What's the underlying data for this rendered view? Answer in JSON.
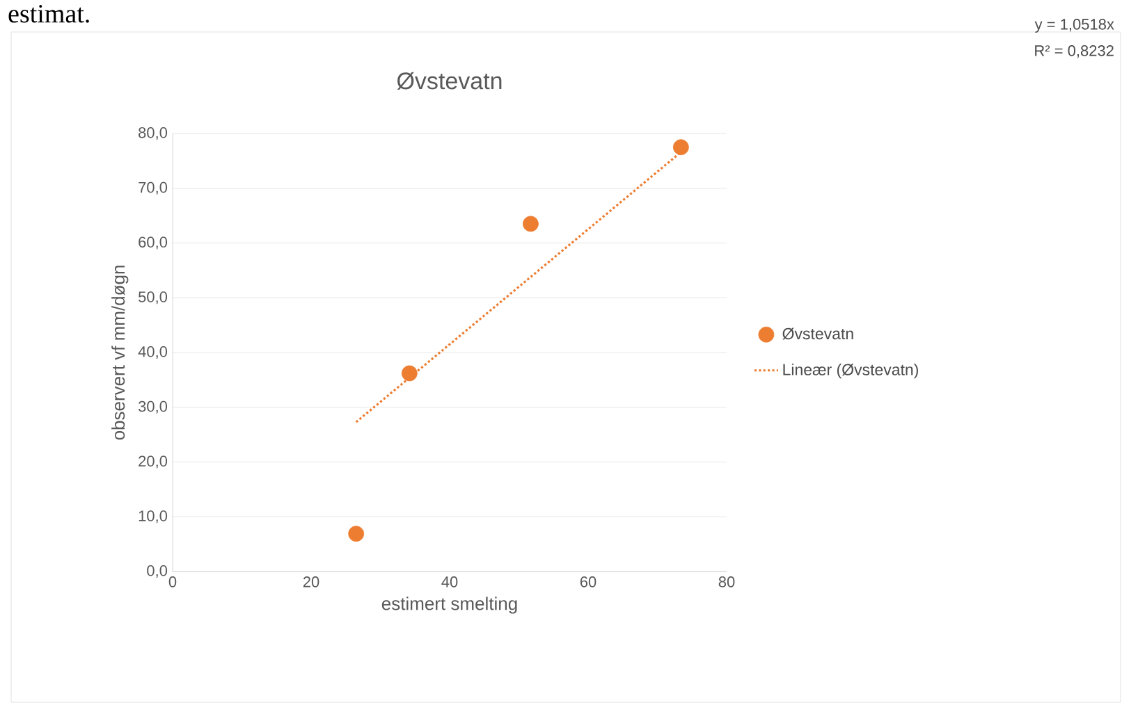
{
  "chart_data": {
    "type": "scatter",
    "title": "Øvstevatn",
    "xlabel": "estimert smelting",
    "ylabel": "observert vf mm/døgn",
    "xlim": [
      0,
      80
    ],
    "xticks": [
      0,
      20,
      40,
      60,
      80
    ],
    "ylim": [
      0,
      80
    ],
    "yticks": [
      {
        "value": 0,
        "label": "0,0"
      },
      {
        "value": 10,
        "label": "10,0"
      },
      {
        "value": 20,
        "label": "20,0"
      },
      {
        "value": 30,
        "label": "30,0"
      },
      {
        "value": 40,
        "label": "40,0"
      },
      {
        "value": 50,
        "label": "50,0"
      },
      {
        "value": 60,
        "label": "60,0"
      },
      {
        "value": 70,
        "label": "70,0"
      },
      {
        "value": 80,
        "label": "80,0"
      }
    ],
    "grid": "y",
    "legend": "right",
    "annotations": [
      "estimat.",
      "y = 1,0518x",
      "R² = 0,8232"
    ],
    "series": [
      {
        "name": "Øvstevatn",
        "color": "#ed7d31",
        "marker": "circle",
        "x": [
          26.5,
          34.2,
          51.7,
          73.4
        ],
        "values": [
          6.9,
          36.2,
          63.5,
          77.5
        ]
      },
      {
        "name": "Lineær (Øvstevatn)",
        "type": "line",
        "color": "#ed7d31",
        "line_style": "dotted",
        "marker": "none",
        "x": [
          26.5,
          73.4
        ],
        "values": [
          27.3,
          76.6
        ]
      }
    ]
  }
}
